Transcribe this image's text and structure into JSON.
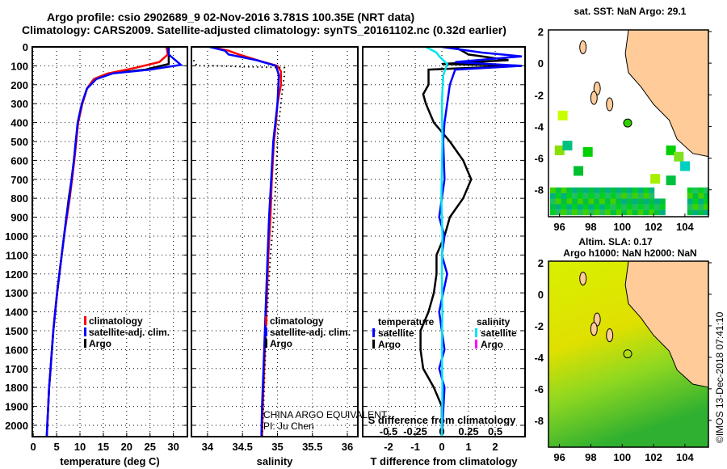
{
  "title_line1": "Argo profile: csio 2902689_9 02-Nov-2016 3.781S 100.35E (NRT data)",
  "title_line2": "Climatology: CARS2009. Satellite-adjusted climatology: synTS_20161102.nc (0.32d earlier)",
  "colors": {
    "climatology": "#ff0000",
    "satellite": "#0000ff",
    "argo": "#000000",
    "sal_satellite": "#00e5ee",
    "sal_argo": "#ff00ff",
    "land": "#ffcc99"
  },
  "annotation": {
    "line1": "CHINA ARGO EQUIVALENT",
    "line2": "PI: Ju Chen"
  },
  "credit": "©IMOS 13-Dec-2018 07:41:10",
  "chart_data": [
    {
      "type": "line",
      "name": "temperature",
      "xlabel": "temperature (deg C)",
      "xlim": [
        -0.2,
        33
      ],
      "ylim": [
        0,
        2060
      ],
      "xticks": [
        "0",
        "5",
        "10",
        "15",
        "20",
        "25",
        "30"
      ],
      "xtickvals": [
        0,
        5,
        10,
        15,
        20,
        25,
        30
      ],
      "yticks": [
        "0",
        "100",
        "200",
        "300",
        "400",
        "500",
        "600",
        "700",
        "800",
        "900",
        "1000",
        "1100",
        "1200",
        "1300",
        "1400",
        "1500",
        "1600",
        "1700",
        "1800",
        "1900",
        "2000"
      ],
      "legend": [
        "climatology",
        "satellite-adj. clim.",
        "Argo"
      ],
      "series": [
        {
          "name": "Argo",
          "color": "#000000",
          "points": [
            [
              29,
              0
            ],
            [
              29,
              90
            ],
            [
              24,
              120
            ],
            [
              16,
              140
            ],
            [
              13,
              170
            ],
            [
              11.5,
              220
            ],
            [
              10.5,
              300
            ],
            [
              9.6,
              400
            ],
            [
              9.1,
              500
            ],
            [
              8.7,
              600
            ],
            [
              8.2,
              700
            ],
            [
              7.6,
              800
            ],
            [
              7.1,
              900
            ],
            [
              6.6,
              1000
            ],
            [
              6.1,
              1100
            ],
            [
              5.6,
              1200
            ],
            [
              5.1,
              1300
            ],
            [
              4.7,
              1400
            ],
            [
              4.3,
              1500
            ],
            [
              4,
              1600
            ],
            [
              3.7,
              1700
            ],
            [
              3.4,
              1800
            ],
            [
              3.2,
              1900
            ],
            [
              3,
              2000
            ],
            [
              2.9,
              2060
            ]
          ]
        },
        {
          "name": "climatology",
          "color": "#ff0000",
          "points": [
            [
              28.5,
              0
            ],
            [
              28.8,
              40
            ],
            [
              27,
              80
            ],
            [
              22,
              110
            ],
            [
              16,
              140
            ],
            [
              13,
              170
            ],
            [
              11.5,
              220
            ],
            [
              10.5,
              300
            ],
            [
              9.6,
              400
            ],
            [
              9.2,
              500
            ],
            [
              8.8,
              600
            ],
            [
              8.3,
              700
            ],
            [
              7.8,
              800
            ],
            [
              7.2,
              900
            ],
            [
              6.6,
              1000
            ],
            [
              6.1,
              1100
            ],
            [
              5.6,
              1200
            ],
            [
              5.1,
              1300
            ],
            [
              4.7,
              1400
            ],
            [
              4.3,
              1500
            ],
            [
              4,
              1600
            ],
            [
              3.7,
              1700
            ],
            [
              3.4,
              1800
            ],
            [
              3.2,
              1900
            ],
            [
              3,
              2000
            ],
            [
              2.9,
              2060
            ]
          ]
        },
        {
          "name": "satellite-adj. clim.",
          "color": "#0000ff",
          "points": [
            [
              28.8,
              0
            ],
            [
              29,
              40
            ],
            [
              31.6,
              95
            ],
            [
              25,
              120
            ],
            [
              17,
              140
            ],
            [
              13.5,
              170
            ],
            [
              11.5,
              220
            ],
            [
              10.4,
              300
            ],
            [
              9.5,
              400
            ],
            [
              9.1,
              500
            ],
            [
              8.7,
              600
            ],
            [
              8.2,
              700
            ],
            [
              7.7,
              800
            ],
            [
              7.1,
              900
            ],
            [
              6.6,
              1000
            ],
            [
              6.1,
              1100
            ],
            [
              5.6,
              1200
            ],
            [
              5.1,
              1300
            ],
            [
              4.7,
              1400
            ],
            [
              4.3,
              1500
            ],
            [
              4,
              1600
            ],
            [
              3.7,
              1700
            ],
            [
              3.4,
              1800
            ],
            [
              3.2,
              1900
            ],
            [
              3,
              2000
            ],
            [
              2.9,
              2060
            ]
          ]
        }
      ]
    },
    {
      "type": "line",
      "name": "salinity",
      "xlabel": "salinity",
      "xlim": [
        33.77,
        36.15
      ],
      "ylim": [
        0,
        2060
      ],
      "xticks": [
        "34",
        "34.5",
        "35",
        "35.5",
        "36"
      ],
      "xtickvals": [
        34,
        34.5,
        35,
        35.5,
        36
      ],
      "legend": [
        "climatology",
        "satellite-adj. clim.",
        "Argo"
      ],
      "series": [
        {
          "name": "climatology",
          "color": "#ff0000",
          "points": [
            [
              34.05,
              0
            ],
            [
              34.3,
              20
            ],
            [
              34.45,
              40
            ],
            [
              34.8,
              80
            ],
            [
              35.0,
              100
            ],
            [
              35.05,
              130
            ],
            [
              35.05,
              200
            ],
            [
              35.0,
              300
            ],
            [
              34.98,
              400
            ],
            [
              34.95,
              500
            ],
            [
              34.92,
              700
            ],
            [
              34.9,
              900
            ],
            [
              34.87,
              1100
            ],
            [
              34.85,
              1300
            ],
            [
              34.83,
              1500
            ],
            [
              34.81,
              1700
            ],
            [
              34.79,
              1900
            ],
            [
              34.78,
              2060
            ]
          ]
        },
        {
          "name": "satellite-adj. clim.",
          "color": "#0000ff",
          "points": [
            [
              34.03,
              0
            ],
            [
              34.25,
              20
            ],
            [
              34.3,
              40
            ],
            [
              34.7,
              70
            ],
            [
              34.98,
              100
            ],
            [
              35.02,
              150
            ],
            [
              35.0,
              300
            ],
            [
              34.97,
              400
            ],
            [
              34.94,
              500
            ],
            [
              34.91,
              700
            ],
            [
              34.88,
              900
            ],
            [
              34.86,
              1100
            ],
            [
              34.84,
              1300
            ],
            [
              34.82,
              1500
            ],
            [
              34.8,
              1700
            ],
            [
              34.78,
              1900
            ],
            [
              34.77,
              2060
            ]
          ]
        },
        {
          "name": "Argo",
          "color": "#000000",
          "dotted": true,
          "points": [
            [
              33.8,
              70
            ],
            [
              33.85,
              100
            ],
            [
              34.1,
              100
            ],
            [
              35.1,
              110
            ],
            [
              35.1,
              150
            ],
            [
              35.08,
              200
            ],
            [
              35.05,
              300
            ],
            [
              35.02,
              400
            ],
            [
              35.0,
              500
            ],
            [
              34.98,
              700
            ],
            [
              34.95,
              900
            ],
            [
              34.9,
              1100
            ],
            [
              34.87,
              1300
            ],
            [
              34.84,
              1500
            ],
            [
              34.82,
              1700
            ],
            [
              34.8,
              1900
            ],
            [
              34.78,
              2060
            ]
          ]
        }
      ]
    },
    {
      "type": "line",
      "name": "difference",
      "xlabel": "T difference from climatology",
      "x2label": "S difference from climatology",
      "xlim": [
        -2.97,
        3.12
      ],
      "ylim": [
        0,
        2060
      ],
      "xticks": [
        "-2",
        "-1",
        "0",
        "1",
        "2"
      ],
      "xtickvals": [
        -2,
        -1,
        0,
        1,
        2
      ],
      "x2ticks": [
        "-0.5",
        "-0.25",
        "0",
        "0.25",
        "0.5"
      ],
      "x2tickvals": [
        -0.5,
        -0.25,
        0,
        0.25,
        0.5
      ],
      "legend_t": {
        "title": "temperature",
        "items": [
          "satellite",
          "Argo"
        ]
      },
      "legend_s": {
        "title": "salinity",
        "items": [
          "satellite",
          "Argo"
        ]
      },
      "series": [
        {
          "name": "T Argo",
          "color": "#000000",
          "points": [
            [
              0.5,
              0
            ],
            [
              1,
              40
            ],
            [
              2.5,
              70
            ],
            [
              0,
              90
            ],
            [
              3,
              100
            ],
            [
              -0.5,
              120
            ],
            [
              -0.5,
              200
            ],
            [
              -0.7,
              250
            ],
            [
              -0.6,
              300
            ],
            [
              -0.3,
              400
            ],
            [
              0.3,
              500
            ],
            [
              0.8,
              600
            ],
            [
              1.1,
              700
            ],
            [
              0.8,
              800
            ],
            [
              0.3,
              900
            ],
            [
              0.1,
              1000
            ],
            [
              -0.2,
              1100
            ],
            [
              -0.2,
              1200
            ],
            [
              -0.3,
              1300
            ],
            [
              -0.5,
              1400
            ],
            [
              -0.8,
              1500
            ],
            [
              -0.8,
              1600
            ],
            [
              -0.7,
              1700
            ],
            [
              -0.3,
              1800
            ],
            [
              0,
              1900
            ],
            [
              0,
              2060
            ]
          ]
        },
        {
          "name": "T satellite",
          "color": "#0000ff",
          "points": [
            [
              0,
              0
            ],
            [
              1.5,
              30
            ],
            [
              3,
              50
            ],
            [
              0.5,
              80
            ],
            [
              3,
              100
            ],
            [
              0.5,
              120
            ],
            [
              0.3,
              200
            ],
            [
              0.2,
              300
            ],
            [
              0.1,
              400
            ],
            [
              0.05,
              500
            ],
            [
              0.1,
              700
            ],
            [
              -0.1,
              900
            ],
            [
              0.1,
              1000
            ],
            [
              0,
              1100
            ],
            [
              0.2,
              1200
            ],
            [
              -0.1,
              1400
            ],
            [
              0.1,
              1600
            ],
            [
              -0.1,
              1700
            ],
            [
              0.1,
              1800
            ],
            [
              0,
              2060
            ]
          ]
        },
        {
          "name": "S satellite",
          "color": "#00e5ee",
          "points": [
            [
              -0.6,
              0
            ],
            [
              -0.2,
              30
            ],
            [
              -0.1,
              50
            ],
            [
              0.2,
              90
            ],
            [
              0.05,
              150
            ],
            [
              0,
              300
            ],
            [
              0.02,
              500
            ],
            [
              -0.02,
              800
            ],
            [
              0.02,
              1000
            ],
            [
              0,
              1200
            ],
            [
              0.02,
              1400
            ],
            [
              0,
              1600
            ],
            [
              0.02,
              1800
            ],
            [
              0,
              2060
            ]
          ]
        }
      ]
    },
    {
      "type": "map",
      "name": "sst",
      "title": "sat. SST: NaN Argo: 29.1",
      "xlim": [
        95.3,
        105.5
      ],
      "ylim": [
        -9.7,
        2.1
      ],
      "xticks": [
        "96",
        "98",
        "100",
        "102",
        "104"
      ],
      "xtickvals": [
        96,
        98,
        100,
        102,
        104
      ],
      "yticks": [
        "2",
        "0",
        "-2",
        "-4",
        "-6",
        "-8"
      ],
      "ytickvals": [
        2,
        0,
        -2,
        -4,
        -6,
        -8
      ],
      "argo_position": [
        100.35,
        -3.78
      ]
    },
    {
      "type": "map",
      "name": "sla",
      "title": "Altim. SLA: 0.17",
      "subtitle": "Argo h1000: NaN h2000: NaN",
      "xlim": [
        95.3,
        105.5
      ],
      "ylim": [
        -9.7,
        2.1
      ],
      "xticks": [
        "96",
        "98",
        "100",
        "102",
        "104"
      ],
      "xtickvals": [
        96,
        98,
        100,
        102,
        104
      ],
      "yticks": [
        "2",
        "0",
        "-2",
        "-4",
        "-6",
        "-8"
      ],
      "ytickvals": [
        2,
        0,
        -2,
        -4,
        -6,
        -8
      ],
      "argo_position": [
        100.35,
        -3.78
      ]
    }
  ]
}
